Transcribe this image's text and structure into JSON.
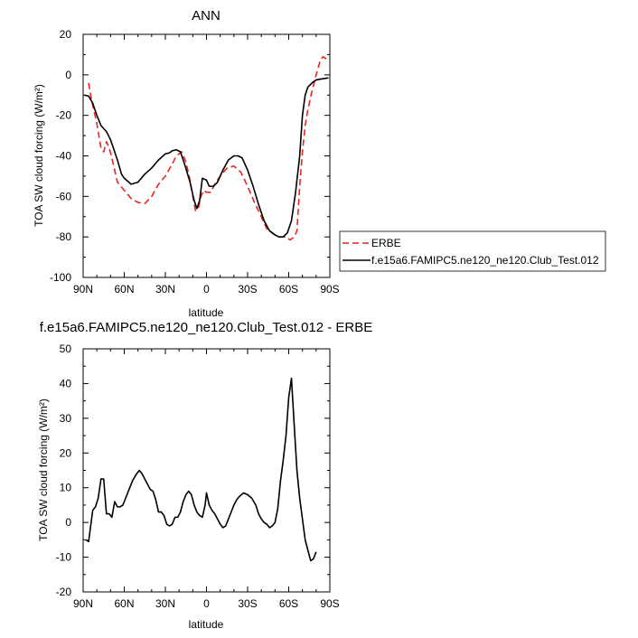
{
  "chart_data": [
    {
      "type": "line",
      "title": "ANN",
      "xlabel": "latitude",
      "ylabel": "TOA SW cloud forcing (W/m²)",
      "xlim": [
        90,
        -90
      ],
      "ylim": [
        -100,
        20
      ],
      "x_tick_values": [
        90,
        60,
        30,
        0,
        -30,
        -60,
        -90
      ],
      "x_tick_labels": [
        "90N",
        "60N",
        "30N",
        "0",
        "30S",
        "60S",
        "90S"
      ],
      "y_tick_values": [
        -100,
        -80,
        -60,
        -40,
        -20,
        0,
        20
      ],
      "y_tick_labels": [
        "-100",
        "-80",
        "-60",
        "-40",
        "-20",
        "0",
        "20"
      ],
      "legend_position": "right",
      "series": [
        {
          "name": "ERBE",
          "color": "#e8251f",
          "dash": "dashed",
          "points": [
            [
              86,
              -4
            ],
            [
              84,
              -12
            ],
            [
              80,
              -24
            ],
            [
              77,
              -36
            ],
            [
              75,
              -38
            ],
            [
              73,
              -33
            ],
            [
              71,
              -36
            ],
            [
              68,
              -44
            ],
            [
              65,
              -53
            ],
            [
              60,
              -57
            ],
            [
              55,
              -61
            ],
            [
              50,
              -63
            ],
            [
              45,
              -63.5
            ],
            [
              40,
              -60
            ],
            [
              35,
              -54
            ],
            [
              30,
              -50
            ],
            [
              25,
              -44
            ],
            [
              22,
              -40
            ],
            [
              18,
              -38
            ],
            [
              15,
              -43
            ],
            [
              12,
              -52
            ],
            [
              10,
              -60
            ],
            [
              8,
              -67
            ],
            [
              6,
              -66
            ],
            [
              4,
              -60
            ],
            [
              2,
              -57
            ],
            [
              0,
              -58
            ],
            [
              -3,
              -58
            ],
            [
              -6,
              -54
            ],
            [
              -10,
              -50
            ],
            [
              -15,
              -46
            ],
            [
              -20,
              -45
            ],
            [
              -25,
              -48
            ],
            [
              -30,
              -55
            ],
            [
              -35,
              -63
            ],
            [
              -40,
              -70
            ],
            [
              -44,
              -76
            ],
            [
              -48,
              -78
            ],
            [
              -52,
              -80
            ],
            [
              -55,
              -80
            ],
            [
              -58,
              -80
            ],
            [
              -61,
              -81.5
            ],
            [
              -64,
              -80
            ],
            [
              -66,
              -77
            ],
            [
              -68,
              -55
            ],
            [
              -70,
              -38
            ],
            [
              -72,
              -25
            ],
            [
              -74,
              -17
            ],
            [
              -77,
              -8
            ],
            [
              -80,
              0
            ],
            [
              -83,
              7
            ],
            [
              -85,
              9
            ],
            [
              -87,
              8
            ],
            [
              -89,
              7
            ]
          ]
        },
        {
          "name": "f.e15a6.FAMIPC5.ne120_ne120.Club_Test.012",
          "color": "#000000",
          "dash": "solid",
          "points": [
            [
              89,
              -10
            ],
            [
              86,
              -10.5
            ],
            [
              83,
              -14
            ],
            [
              80,
              -20
            ],
            [
              77,
              -25
            ],
            [
              73,
              -28
            ],
            [
              70,
              -32
            ],
            [
              68,
              -36
            ],
            [
              65,
              -42
            ],
            [
              62,
              -49
            ],
            [
              60,
              -51
            ],
            [
              55,
              -54
            ],
            [
              50,
              -53
            ],
            [
              45,
              -49
            ],
            [
              40,
              -46
            ],
            [
              35,
              -42
            ],
            [
              30,
              -39
            ],
            [
              27,
              -38.5
            ],
            [
              25,
              -37.5
            ],
            [
              22,
              -37
            ],
            [
              19,
              -38
            ],
            [
              16,
              -44
            ],
            [
              12,
              -53
            ],
            [
              9,
              -62
            ],
            [
              7,
              -66
            ],
            [
              5,
              -62
            ],
            [
              3,
              -51
            ],
            [
              0,
              -52
            ],
            [
              -2,
              -55
            ],
            [
              -5,
              -55
            ],
            [
              -8,
              -53
            ],
            [
              -12,
              -47
            ],
            [
              -16,
              -42
            ],
            [
              -20,
              -40
            ],
            [
              -23,
              -40
            ],
            [
              -26,
              -41
            ],
            [
              -30,
              -47
            ],
            [
              -34,
              -55
            ],
            [
              -38,
              -64
            ],
            [
              -42,
              -72
            ],
            [
              -46,
              -77
            ],
            [
              -50,
              -79
            ],
            [
              -53,
              -80
            ],
            [
              -56,
              -80
            ],
            [
              -59,
              -78
            ],
            [
              -62,
              -72
            ],
            [
              -65,
              -58
            ],
            [
              -68,
              -40
            ],
            [
              -70,
              -20
            ],
            [
              -72,
              -10
            ],
            [
              -74,
              -6
            ],
            [
              -77,
              -4
            ],
            [
              -80,
              -2.5
            ],
            [
              -84,
              -2
            ],
            [
              -89,
              -1.5
            ]
          ]
        }
      ]
    },
    {
      "type": "line",
      "title": "f.e15a6.FAMIPC5.ne120_ne120.Club_Test.012 - ERBE",
      "xlabel": "latitude",
      "ylabel": "TOA SW cloud forcing (W/m²)",
      "xlim": [
        90,
        -90
      ],
      "ylim": [
        -20,
        50
      ],
      "x_tick_values": [
        90,
        60,
        30,
        0,
        -30,
        -60,
        -90
      ],
      "x_tick_labels": [
        "90N",
        "60N",
        "30N",
        "0",
        "30S",
        "60S",
        "90S"
      ],
      "y_tick_values": [
        -20,
        -10,
        0,
        10,
        20,
        30,
        40,
        50
      ],
      "y_tick_labels": [
        "-20",
        "-10",
        "0",
        "10",
        "20",
        "30",
        "40",
        "50"
      ],
      "series": [
        {
          "name": "",
          "color": "#000000",
          "dash": "solid",
          "points": [
            [
              88,
              -5
            ],
            [
              86,
              -5.5
            ],
            [
              83,
              3.5
            ],
            [
              81,
              4.5
            ],
            [
              79,
              7
            ],
            [
              77,
              12.5
            ],
            [
              75,
              12.5
            ],
            [
              73,
              2.5
            ],
            [
              71,
              2.5
            ],
            [
              69,
              1.5
            ],
            [
              67,
              6
            ],
            [
              65,
              4.5
            ],
            [
              63,
              4.5
            ],
            [
              61,
              5
            ],
            [
              59,
              7
            ],
            [
              57,
              9
            ],
            [
              54,
              12
            ],
            [
              51,
              14
            ],
            [
              49,
              15
            ],
            [
              47,
              14
            ],
            [
              45,
              12.5
            ],
            [
              43,
              11
            ],
            [
              41,
              9.5
            ],
            [
              39,
              9
            ],
            [
              37,
              6.5
            ],
            [
              35,
              3
            ],
            [
              33,
              3
            ],
            [
              31,
              2
            ],
            [
              29,
              -0.5
            ],
            [
              27,
              -1
            ],
            [
              25,
              -0.5
            ],
            [
              23,
              1.5
            ],
            [
              21,
              1.5
            ],
            [
              19,
              3
            ],
            [
              17,
              6
            ],
            [
              15,
              8
            ],
            [
              13,
              9
            ],
            [
              11,
              8
            ],
            [
              9,
              5
            ],
            [
              7,
              3
            ],
            [
              5,
              2
            ],
            [
              3,
              1.5
            ],
            [
              1,
              5
            ],
            [
              0,
              8.5
            ],
            [
              -2,
              5
            ],
            [
              -4,
              3.5
            ],
            [
              -6,
              2.5
            ],
            [
              -8,
              1
            ],
            [
              -10,
              -0.5
            ],
            [
              -12,
              -1.5
            ],
            [
              -14,
              -1
            ],
            [
              -16,
              1
            ],
            [
              -18,
              3
            ],
            [
              -20,
              5
            ],
            [
              -22,
              6.5
            ],
            [
              -24,
              7.5
            ],
            [
              -27,
              8.5
            ],
            [
              -30,
              8
            ],
            [
              -33,
              7
            ],
            [
              -36,
              5
            ],
            [
              -38,
              2.5
            ],
            [
              -40,
              1
            ],
            [
              -42,
              0
            ],
            [
              -44,
              -0.5
            ],
            [
              -46,
              -1.5
            ],
            [
              -48,
              -1
            ],
            [
              -50,
              0
            ],
            [
              -52,
              4
            ],
            [
              -54,
              12
            ],
            [
              -56,
              18
            ],
            [
              -58,
              25
            ],
            [
              -60,
              36
            ],
            [
              -62,
              41.5
            ],
            [
              -64,
              28
            ],
            [
              -66,
              15
            ],
            [
              -68,
              7
            ],
            [
              -70,
              1
            ],
            [
              -72,
              -5
            ],
            [
              -74,
              -8
            ],
            [
              -76,
              -11
            ],
            [
              -78,
              -10.5
            ],
            [
              -80,
              -8.5
            ]
          ]
        }
      ]
    }
  ]
}
